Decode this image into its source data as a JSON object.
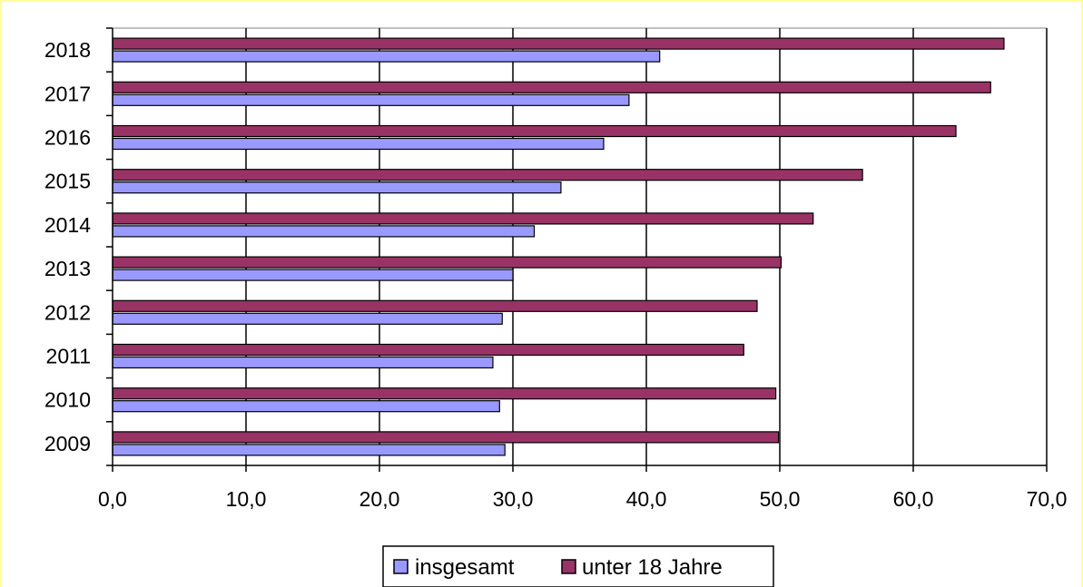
{
  "chart_data": {
    "type": "bar",
    "orientation": "horizontal",
    "categories": [
      "2018",
      "2017",
      "2016",
      "2015",
      "2014",
      "2013",
      "2012",
      "2011",
      "2010",
      "2009"
    ],
    "series": [
      {
        "name": "unter 18 Jahre",
        "color": "#993366",
        "values": [
          66.8,
          65.8,
          63.2,
          56.2,
          52.5,
          50.1,
          48.3,
          47.3,
          49.7,
          49.9
        ]
      },
      {
        "name": "insgesamt",
        "color": "#9999ff",
        "values": [
          41.0,
          38.7,
          36.8,
          33.6,
          31.6,
          30.0,
          29.2,
          28.5,
          29.0,
          29.4
        ]
      }
    ],
    "xlim": [
      0,
      70
    ],
    "xticks": [
      "0,0",
      "10,0",
      "20,0",
      "30,0",
      "40,0",
      "50,0",
      "60,0",
      "70,0"
    ],
    "grid": "vertical",
    "legend": {
      "placement": "bottom",
      "entries": [
        {
          "label": "insgesamt",
          "color": "#9999ff"
        },
        {
          "label": "unter 18 Jahre",
          "color": "#993366"
        }
      ]
    },
    "frame_color": "#ffff99"
  }
}
